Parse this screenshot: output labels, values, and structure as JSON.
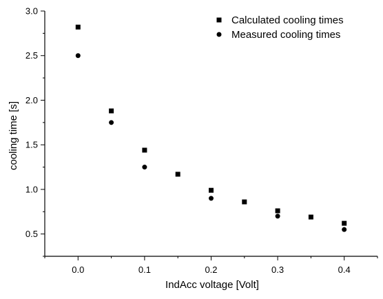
{
  "chart_data": {
    "type": "scatter",
    "title": "",
    "xlabel": "IndAcc voltage [Volt]",
    "ylabel": "cooling time [s]",
    "xlim": [
      -0.05,
      0.45
    ],
    "ylim": [
      0.25,
      3.0
    ],
    "x_ticks": [
      0.0,
      0.1,
      0.2,
      0.3,
      0.4
    ],
    "x_tick_labels": [
      "0.0",
      "0.1",
      "0.2",
      "0.3",
      "0.4"
    ],
    "y_ticks": [
      0.5,
      1.0,
      1.5,
      2.0,
      2.5,
      3.0
    ],
    "y_tick_labels": [
      "0.5",
      "1.0",
      "1.5",
      "2.0",
      "2.5",
      "3.0"
    ],
    "grid": false,
    "legend_position": "top-right",
    "series": [
      {
        "name": "Calculated cooling times",
        "marker": "square",
        "color": "#000000",
        "x": [
          0.0,
          0.05,
          0.1,
          0.15,
          0.2,
          0.25,
          0.3,
          0.35,
          0.4
        ],
        "y": [
          2.82,
          1.88,
          1.44,
          1.17,
          0.99,
          0.86,
          0.76,
          0.69,
          0.62
        ]
      },
      {
        "name": "Measured cooling times",
        "marker": "circle",
        "color": "#000000",
        "x": [
          0.0,
          0.05,
          0.1,
          0.2,
          0.3,
          0.4
        ],
        "y": [
          2.5,
          1.75,
          1.25,
          0.9,
          0.7,
          0.55
        ]
      }
    ]
  }
}
